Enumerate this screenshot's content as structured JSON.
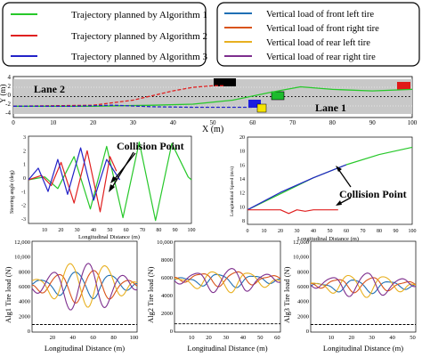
{
  "legend_left": [
    {
      "label": "Trajectory planned by Algorithm 1",
      "color": "#27c82a"
    },
    {
      "label": "Trajectory planned by Algorithm 2",
      "color": "#e02020"
    },
    {
      "label": "Trajectory planned by Algorithm 3",
      "color": "#2323c8"
    }
  ],
  "legend_right": [
    {
      "label": "Vertical load of front left tire",
      "color": "#1f6fb4"
    },
    {
      "label": "Vertical load of front right tire",
      "color": "#d9541a"
    },
    {
      "label": "Vertical load of rear left tire",
      "color": "#e8b020"
    },
    {
      "label": "Vertical load of rear right tire",
      "color": "#7e2f8e"
    }
  ],
  "road": {
    "lane1_label": "Lane 1",
    "lane2_label": "Lane 2",
    "xlabel": "X (m)",
    "ylabel": "Y (m)",
    "x_ticks": [
      "0",
      "10",
      "20",
      "30",
      "40",
      "50",
      "60",
      "70",
      "80",
      "90",
      "100"
    ],
    "y_ticks": [
      "4",
      "2",
      "0",
      "-2",
      "-4"
    ]
  },
  "steer": {
    "ylabel": "Steering angle (deg)",
    "xlabel": "Longitudinal Distance (m)",
    "annotation": "Collision Point",
    "x_ticks": [
      "10",
      "20",
      "30",
      "40",
      "50",
      "60",
      "70",
      "80",
      "90",
      "100"
    ],
    "y_ticks": [
      "3",
      "2",
      "1",
      "0",
      "-1",
      "-2",
      "-3"
    ]
  },
  "speed": {
    "ylabel": "Longitudinal Speed (m/s)",
    "xlabel": "Longitudinal Distance (m)",
    "annotation": "Collision Point",
    "x_ticks": [
      "0",
      "10",
      "20",
      "30",
      "40",
      "50",
      "60",
      "70",
      "80",
      "90",
      "100"
    ],
    "y_ticks": [
      "20",
      "18",
      "16",
      "14",
      "12",
      "10",
      "8"
    ]
  },
  "loads": [
    {
      "ylabel": "Alg1 Tire load (N)",
      "xlabel": "Longitudinal Distance (m)",
      "y_ticks": [
        "12,000",
        "10,000",
        "8000",
        "6000",
        "4000",
        "2000",
        "0"
      ],
      "x_ticks": [
        "20",
        "40",
        "60",
        "80",
        "100"
      ]
    },
    {
      "ylabel": "Alg2 Tire load (N)",
      "xlabel": "Longitudinal Distance (m)",
      "y_ticks": [
        "10,000",
        "8000",
        "6000",
        "4000",
        "2000",
        "0"
      ],
      "x_ticks": [
        "10",
        "20",
        "30",
        "40",
        "50",
        "60"
      ]
    },
    {
      "ylabel": "Alg3 Tire load (N)",
      "xlabel": "Longitudinal Distance (m)",
      "y_ticks": [
        "12,000",
        "10,000",
        "8000",
        "6000",
        "4000",
        "2000",
        "0"
      ],
      "x_ticks": [
        "10",
        "20",
        "30",
        "40",
        "50"
      ]
    }
  ],
  "chart_data": [
    {
      "type": "line",
      "title": "",
      "xlabel": "X (m)",
      "ylabel": "Y (m)",
      "xlim": [
        0,
        100
      ],
      "ylim": [
        -4,
        4
      ],
      "series": [
        {
          "name": "Trajectory planned by Algorithm 1",
          "color": "#27c82a",
          "x": [
            0,
            20,
            35,
            45,
            55,
            65,
            72,
            80,
            90,
            100
          ],
          "y": [
            -1.8,
            -1.8,
            -1.6,
            -1.4,
            -0.6,
            1.0,
            2.0,
            1.5,
            1.2,
            1.5
          ]
        },
        {
          "name": "Trajectory planned by Algorithm 2",
          "color": "#e02020",
          "x": [
            0,
            20,
            30,
            40,
            45,
            50,
            53
          ],
          "y": [
            -1.8,
            -1.6,
            -0.6,
            1.2,
            1.9,
            2.2,
            2.2
          ]
        },
        {
          "name": "Trajectory planned by Algorithm 3",
          "color": "#2323c8",
          "x": [
            0,
            15,
            25,
            35,
            45,
            55,
            60
          ],
          "y": [
            -1.8,
            -1.8,
            -1.6,
            -1.9,
            -2.0,
            -2.0,
            -2.0
          ]
        }
      ]
    },
    {
      "type": "line",
      "xlabel": "Longitudinal Distance (m)",
      "ylabel": "Steering angle (deg)",
      "xlim": [
        0,
        100
      ],
      "ylim": [
        -3,
        3
      ],
      "series": [
        {
          "color": "#27c82a",
          "x": [
            0,
            10,
            18,
            28,
            38,
            48,
            58,
            68,
            78,
            88,
            98,
            100
          ],
          "y": [
            0,
            0.2,
            -0.6,
            1.6,
            -2.0,
            2.3,
            -2.6,
            2.6,
            -2.8,
            2.5,
            0.2,
            0
          ]
        },
        {
          "color": "#e02020",
          "x": [
            0,
            8,
            14,
            20,
            28,
            36,
            44,
            50,
            54
          ],
          "y": [
            0,
            0.3,
            -0.4,
            1.2,
            -1.6,
            2.0,
            -2.2,
            1.6,
            0.6
          ]
        },
        {
          "color": "#2323c8",
          "x": [
            0,
            6,
            12,
            18,
            24,
            32,
            40,
            48,
            56
          ],
          "y": [
            0,
            0.8,
            -0.8,
            1.4,
            -1.0,
            2.2,
            -1.4,
            1.4,
            0
          ]
        }
      ]
    },
    {
      "type": "line",
      "xlabel": "Longitudinal Distance (m)",
      "ylabel": "Longitudinal Speed (m/s)",
      "xlim": [
        0,
        100
      ],
      "ylim": [
        8,
        20
      ],
      "series": [
        {
          "color": "#27c82a",
          "x": [
            0,
            20,
            40,
            60,
            80,
            100
          ],
          "y": [
            10,
            12.2,
            14.4,
            16.2,
            17.6,
            18.6
          ]
        },
        {
          "color": "#2323c8",
          "x": [
            0,
            20,
            40,
            60
          ],
          "y": [
            10,
            12.4,
            14.4,
            16.2
          ]
        },
        {
          "color": "#e02020",
          "x": [
            0,
            20,
            25,
            30,
            35,
            40,
            55
          ],
          "y": [
            10,
            10,
            9.5,
            10,
            9.8,
            10,
            10
          ]
        }
      ]
    },
    {
      "type": "line",
      "ylabel": "Alg1 Tire load (N)",
      "xlim": [
        0,
        100
      ],
      "ylim": [
        0,
        12000
      ],
      "series": [
        {
          "name": "Vertical load of front left tire",
          "color": "#1f6fb4",
          "base": 6300,
          "amp": 1800,
          "phase": 0
        },
        {
          "name": "Vertical load of front right tire",
          "color": "#d9541a",
          "base": 6100,
          "amp": 2200,
          "phase": 3.14
        },
        {
          "name": "Vertical load of rear left tire",
          "color": "#e8b020",
          "base": 6400,
          "amp": 3000,
          "phase": 1.0
        },
        {
          "name": "Vertical load of rear right tire",
          "color": "#7e2f8e",
          "base": 6000,
          "amp": 3200,
          "phase": 4.1
        }
      ]
    },
    {
      "type": "line",
      "ylabel": "Alg2 Tire load (N)",
      "xlim": [
        0,
        60
      ],
      "ylim": [
        0,
        11000
      ],
      "series": [
        {
          "name": "Vertical load of front left tire",
          "color": "#1f6fb4",
          "base": 6300,
          "amp": 800,
          "phase": 0
        },
        {
          "name": "Vertical load of front right tire",
          "color": "#d9541a",
          "base": 6500,
          "amp": 900,
          "phase": 3.14
        },
        {
          "name": "Vertical load of rear left tire",
          "color": "#e8b020",
          "base": 6200,
          "amp": 1300,
          "phase": 1.0
        },
        {
          "name": "Vertical load of rear right tire",
          "color": "#7e2f8e",
          "base": 6300,
          "amp": 1500,
          "phase": 4.1
        }
      ]
    },
    {
      "type": "line",
      "ylabel": "Alg3 Tire load (N)",
      "xlim": [
        0,
        55
      ],
      "ylim": [
        0,
        12000
      ],
      "series": [
        {
          "name": "Vertical load of front left tire",
          "color": "#1f6fb4",
          "base": 6100,
          "amp": 900,
          "phase": 0
        },
        {
          "name": "Vertical load of front right tire",
          "color": "#d9541a",
          "base": 6300,
          "amp": 1000,
          "phase": 3.14
        },
        {
          "name": "Vertical load of rear left tire",
          "color": "#e8b020",
          "base": 6200,
          "amp": 1500,
          "phase": 1.0
        },
        {
          "name": "Vertical load of rear right tire",
          "color": "#7e2f8e",
          "base": 6300,
          "amp": 1600,
          "phase": 4.1
        }
      ]
    }
  ]
}
